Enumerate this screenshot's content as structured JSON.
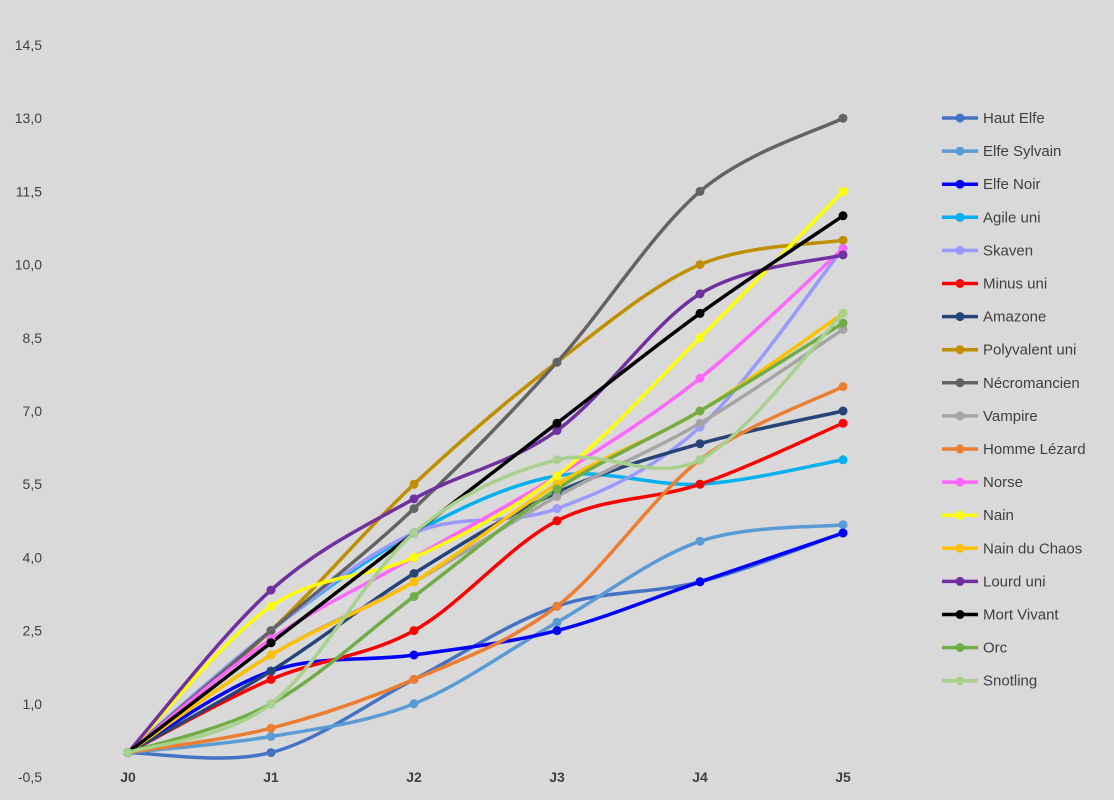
{
  "chart_data": {
    "type": "line",
    "title": "",
    "xlabel": "",
    "ylabel": "",
    "x": [
      "J0",
      "J1",
      "J2",
      "J3",
      "J4",
      "J5"
    ],
    "y_ticks": [
      "-0,5",
      "1,0",
      "2,5",
      "4,0",
      "5,5",
      "7,0",
      "8,5",
      "10,0",
      "11,5",
      "13,0",
      "14,5"
    ],
    "ylim": [
      -0.5,
      14.5
    ],
    "grid": false,
    "legend_position": "right",
    "series": [
      {
        "name": "Haut Elfe",
        "color": "#4472c4",
        "values": [
          0,
          0,
          1.5,
          3,
          3.5,
          4.5
        ]
      },
      {
        "name": "Elfe Sylvain",
        "color": "#5b9bd5",
        "values": [
          0,
          0.33,
          1,
          2.67,
          4.33,
          4.67
        ]
      },
      {
        "name": "Elfe Noir",
        "color": "#0000ff",
        "values": [
          0,
          1.67,
          2,
          2.5,
          3.5,
          4.5
        ]
      },
      {
        "name": "Agile uni",
        "color": "#00b0f0",
        "values": [
          0,
          2.5,
          4.5,
          5.67,
          5.5,
          6
        ]
      },
      {
        "name": "Skaven",
        "color": "#9999ff",
        "values": [
          0,
          2.5,
          4.5,
          5,
          6.67,
          10.33
        ]
      },
      {
        "name": "Minus uni",
        "color": "#ff0000",
        "values": [
          0,
          1.5,
          2.5,
          4.75,
          5.5,
          6.75
        ]
      },
      {
        "name": "Amazone",
        "color": "#264478",
        "values": [
          0,
          1.67,
          3.67,
          5.33,
          6.33,
          7
        ]
      },
      {
        "name": "Polyvalent uni",
        "color": "#bf8f00",
        "values": [
          0,
          2.5,
          5.5,
          8,
          10,
          10.5
        ]
      },
      {
        "name": "Nécromancien",
        "color": "#636363",
        "values": [
          0,
          2.5,
          5,
          8,
          11.5,
          13
        ]
      },
      {
        "name": "Vampire",
        "color": "#a5a5a5",
        "values": [
          0,
          2,
          3.5,
          5.25,
          6.75,
          8.67
        ]
      },
      {
        "name": "Homme Lézard",
        "color": "#ed7d31",
        "values": [
          0,
          0.5,
          1.5,
          3,
          6,
          7.5
        ]
      },
      {
        "name": "Norse",
        "color": "#ff66ff",
        "values": [
          0,
          2.33,
          4,
          5.67,
          7.67,
          10.33
        ]
      },
      {
        "name": "Nain",
        "color": "#ffff00",
        "values": [
          0,
          3,
          4,
          5.67,
          8.5,
          11.5
        ]
      },
      {
        "name": "Nain du Chaos",
        "color": "#ffc000",
        "values": [
          0,
          2,
          3.5,
          5.5,
          7,
          9
        ]
      },
      {
        "name": "Lourd uni",
        "color": "#7030a0",
        "values": [
          0,
          3.33,
          5.2,
          6.6,
          9.4,
          10.2
        ]
      },
      {
        "name": "Mort Vivant",
        "color": "#000000",
        "values": [
          0,
          2.25,
          4.5,
          6.75,
          9,
          11
        ]
      },
      {
        "name": "Orc",
        "color": "#70ad47",
        "values": [
          0,
          1,
          3.2,
          5.4,
          7,
          8.8
        ]
      },
      {
        "name": "Snotling",
        "color": "#a9d18e",
        "values": [
          0,
          1,
          4.5,
          6,
          6,
          9
        ]
      }
    ]
  }
}
